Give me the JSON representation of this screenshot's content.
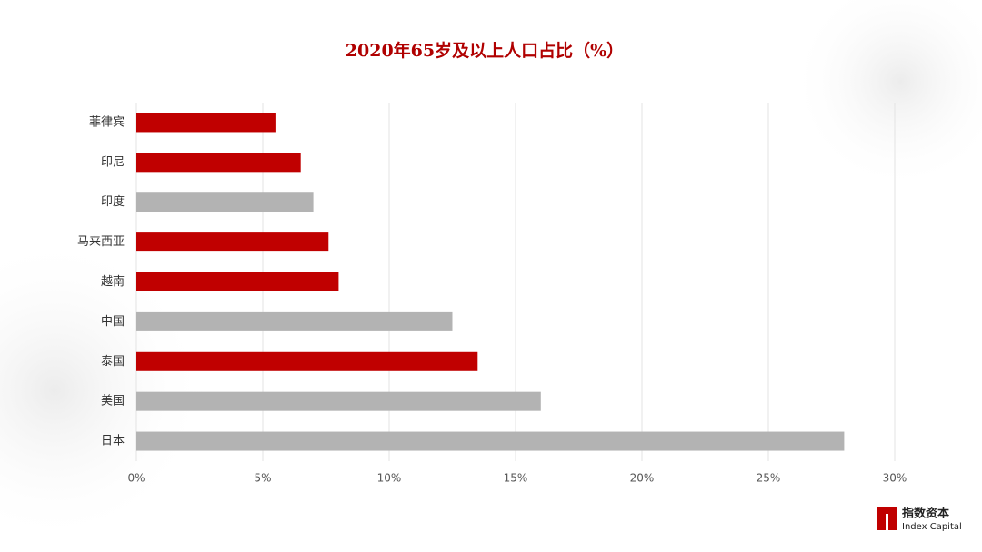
{
  "chart_data": {
    "type": "barh",
    "title": "2020年65岁及以上人口占比（%）",
    "categories": [
      "菲律宾",
      "印尼",
      "印度",
      "马来西亚",
      "越南",
      "中国",
      "泰国",
      "美国",
      "日本"
    ],
    "values": [
      5.5,
      6.5,
      7.0,
      7.6,
      8.0,
      12.5,
      13.5,
      16.0,
      28.0
    ],
    "colors": [
      "#c00000",
      "#c00000",
      "#b3b3b3",
      "#c00000",
      "#c00000",
      "#b3b3b3",
      "#c00000",
      "#b3b3b3",
      "#b3b3b3"
    ],
    "xlim": [
      0,
      30
    ],
    "xticks": [
      {
        "value": 0,
        "label": "0%"
      },
      {
        "value": 5,
        "label": "5%"
      },
      {
        "value": 10,
        "label": "10%"
      },
      {
        "value": 15,
        "label": "15%"
      },
      {
        "value": 20,
        "label": "20%"
      },
      {
        "value": 25,
        "label": "25%"
      },
      {
        "value": 30,
        "label": "30%"
      }
    ],
    "grid": true
  },
  "logo": {
    "name": "指数资本",
    "subtitle": "Index Capital"
  }
}
